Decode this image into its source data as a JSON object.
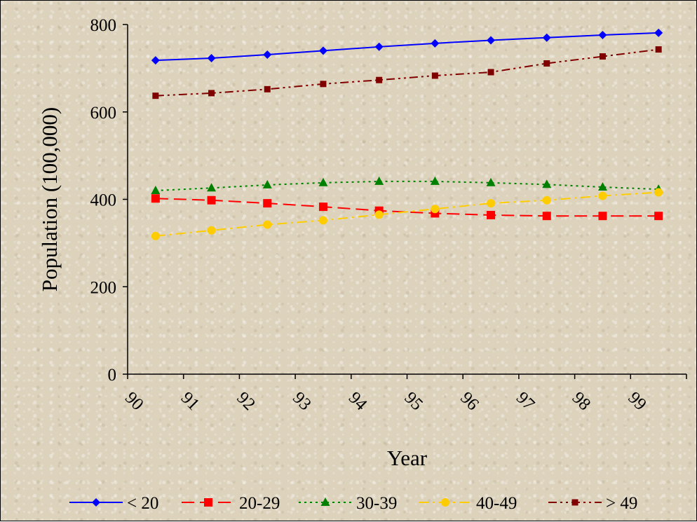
{
  "chart_data": {
    "type": "line",
    "title": "",
    "xlabel": "Year",
    "ylabel": "Population (100,000)",
    "categories": [
      "90",
      "91",
      "92",
      "93",
      "94",
      "95",
      "96",
      "97",
      "98",
      "99"
    ],
    "ylim": [
      0,
      800
    ],
    "yticks": [
      "0",
      "200",
      "400",
      "600",
      "800"
    ],
    "grid": false,
    "legend_position": "bottom",
    "series": [
      {
        "name": "< 20",
        "color": "#0000ff",
        "marker": "diamond",
        "dash": "solid",
        "values": [
          718,
          723,
          731,
          740,
          749,
          757,
          764,
          770,
          776,
          781
        ]
      },
      {
        "name": "20-29",
        "color": "#ff0000",
        "marker": "square",
        "dash": "dashed",
        "values": [
          402,
          398,
          391,
          383,
          374,
          368,
          364,
          362,
          362,
          362
        ]
      },
      {
        "name": "30-39",
        "color": "#008000",
        "marker": "triangle",
        "dash": "dotted",
        "values": [
          420,
          426,
          433,
          438,
          441,
          441,
          438,
          434,
          428,
          423
        ]
      },
      {
        "name": "40-49",
        "color": "#ffcc00",
        "marker": "circle",
        "dash": "dash-dot",
        "values": [
          316,
          329,
          342,
          352,
          365,
          378,
          391,
          398,
          408,
          416
        ]
      },
      {
        "name": "> 49",
        "color": "#800000",
        "marker": "square-small",
        "dash": "dash-dot-dot",
        "values": [
          637,
          643,
          652,
          664,
          673,
          683,
          691,
          711,
          727,
          743
        ]
      }
    ]
  }
}
